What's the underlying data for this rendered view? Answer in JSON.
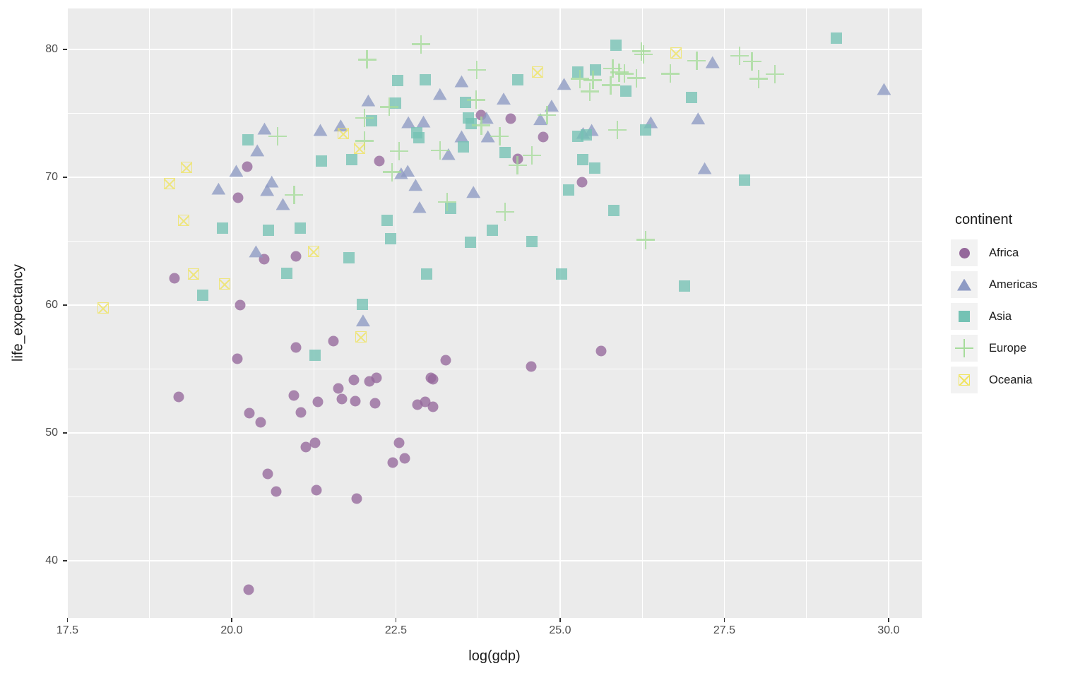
{
  "figure": {
    "x_axis_title": "log(gdp)",
    "y_axis_title": "life_expectancy",
    "colors": {
      "background": "#FFFFFF",
      "panel": "#EBEBEB",
      "grid": "#FFFFFF",
      "tick_text": "#4D4D4D",
      "title_text": "#1A1A1A",
      "legend_key_bg": "#F2F2F2"
    }
  },
  "axes": {
    "x": {
      "tick_values": [
        17.5,
        20.0,
        22.5,
        25.0,
        27.5,
        30.0
      ],
      "tick_labels": [
        "17.5",
        "20.0",
        "22.5",
        "25.0",
        "27.5",
        "30.0"
      ],
      "minor_values": [
        18.75,
        21.25,
        23.75,
        26.25,
        28.75
      ],
      "range": [
        17.495,
        30.505
      ]
    },
    "y": {
      "tick_values": [
        40,
        50,
        60,
        70,
        80
      ],
      "tick_labels": [
        "40",
        "50",
        "60",
        "70",
        "80"
      ],
      "minor_values": [
        45,
        55,
        65,
        75
      ],
      "range": [
        35.3,
        83.2
      ]
    }
  },
  "legend": {
    "title": "continent"
  },
  "chart_data": {
    "type": "scatter",
    "title": "",
    "xlabel": "log(gdp)",
    "ylabel": "life_expectancy",
    "xlim": [
      17.495,
      30.505
    ],
    "ylim": [
      35.3,
      83.2
    ],
    "grid": true,
    "legend_position": "right",
    "series": [
      {
        "name": "Africa",
        "shape": "circle",
        "color": "#95689B",
        "points": [
          [
            20.24,
            70.8
          ],
          [
            20.1,
            68.4
          ],
          [
            23.8,
            74.85
          ],
          [
            24.25,
            74.6
          ],
          [
            24.74,
            73.15
          ],
          [
            24.35,
            71.45
          ],
          [
            22.25,
            71.25
          ],
          [
            25.33,
            69.6
          ],
          [
            20.5,
            63.6
          ],
          [
            20.98,
            63.8
          ],
          [
            19.13,
            62.1
          ],
          [
            20.13,
            60.0
          ],
          [
            21.55,
            57.2
          ],
          [
            20.98,
            56.7
          ],
          [
            20.09,
            55.8
          ],
          [
            19.19,
            52.8
          ],
          [
            21.86,
            54.15
          ],
          [
            21.62,
            53.5
          ],
          [
            20.95,
            52.95
          ],
          [
            21.31,
            52.4
          ],
          [
            21.68,
            52.65
          ],
          [
            21.88,
            52.5
          ],
          [
            20.27,
            51.55
          ],
          [
            20.44,
            50.8
          ],
          [
            21.05,
            51.6
          ],
          [
            25.62,
            56.4
          ],
          [
            23.26,
            55.7
          ],
          [
            24.56,
            55.2
          ],
          [
            22.1,
            54.05
          ],
          [
            22.2,
            54.3
          ],
          [
            23.03,
            54.3
          ],
          [
            23.06,
            54.2
          ],
          [
            22.18,
            52.3
          ],
          [
            22.83,
            52.2
          ],
          [
            22.95,
            52.4
          ],
          [
            23.07,
            52.05
          ],
          [
            21.13,
            48.9
          ],
          [
            21.27,
            49.2
          ],
          [
            20.55,
            46.8
          ],
          [
            20.68,
            45.4
          ],
          [
            21.29,
            45.5
          ],
          [
            21.9,
            44.85
          ],
          [
            20.26,
            37.75
          ],
          [
            22.55,
            49.2
          ],
          [
            22.45,
            47.7
          ],
          [
            22.64,
            48.0
          ]
        ]
      },
      {
        "name": "Americas",
        "shape": "triangle",
        "color": "#8E9BC4",
        "points": [
          [
            20.5,
            73.8
          ],
          [
            20.39,
            72.1
          ],
          [
            20.07,
            70.5
          ],
          [
            20.61,
            69.65
          ],
          [
            20.54,
            69.0
          ],
          [
            19.8,
            69.1
          ],
          [
            20.78,
            67.9
          ],
          [
            21.35,
            73.7
          ],
          [
            21.66,
            74.05
          ],
          [
            23.5,
            77.5
          ],
          [
            25.06,
            77.3
          ],
          [
            23.17,
            76.5
          ],
          [
            22.08,
            76.0
          ],
          [
            24.14,
            76.15
          ],
          [
            24.87,
            75.6
          ],
          [
            23.88,
            74.65
          ],
          [
            24.7,
            74.55
          ],
          [
            22.69,
            74.3
          ],
          [
            22.92,
            74.35
          ],
          [
            23.5,
            73.2
          ],
          [
            23.9,
            73.2
          ],
          [
            25.35,
            73.45
          ],
          [
            25.48,
            73.7
          ],
          [
            26.38,
            74.3
          ],
          [
            23.3,
            71.8
          ],
          [
            22.58,
            70.3
          ],
          [
            22.68,
            70.5
          ],
          [
            22.8,
            69.4
          ],
          [
            23.68,
            68.85
          ],
          [
            22.86,
            67.65
          ],
          [
            27.32,
            79.0
          ],
          [
            29.93,
            76.9
          ],
          [
            27.1,
            74.6
          ],
          [
            27.2,
            70.7
          ],
          [
            20.37,
            64.2
          ],
          [
            22.0,
            58.8
          ]
        ]
      },
      {
        "name": "Asia",
        "shape": "square",
        "color": "#74C2B4",
        "points": [
          [
            20.25,
            72.9
          ],
          [
            21.37,
            71.25
          ],
          [
            21.83,
            71.4
          ],
          [
            25.85,
            80.3
          ],
          [
            22.53,
            77.55
          ],
          [
            22.95,
            77.6
          ],
          [
            24.35,
            77.6
          ],
          [
            25.27,
            78.25
          ],
          [
            25.54,
            78.4
          ],
          [
            26.0,
            76.75
          ],
          [
            22.5,
            75.8
          ],
          [
            23.56,
            75.85
          ],
          [
            22.13,
            74.4
          ],
          [
            23.6,
            74.65
          ],
          [
            23.65,
            74.2
          ],
          [
            22.82,
            73.45
          ],
          [
            22.85,
            73.1
          ],
          [
            25.27,
            73.2
          ],
          [
            25.4,
            73.3
          ],
          [
            26.3,
            73.7
          ],
          [
            23.53,
            72.35
          ],
          [
            24.16,
            71.95
          ],
          [
            25.34,
            71.35
          ],
          [
            25.53,
            70.7
          ],
          [
            25.13,
            69.0
          ],
          [
            23.33,
            67.55
          ],
          [
            25.82,
            67.4
          ],
          [
            22.37,
            66.6
          ],
          [
            29.2,
            80.9
          ],
          [
            27.0,
            76.25
          ],
          [
            27.81,
            69.8
          ],
          [
            19.86,
            66.0
          ],
          [
            20.56,
            65.85
          ],
          [
            21.04,
            66.0
          ],
          [
            21.78,
            63.7
          ],
          [
            20.84,
            62.5
          ],
          [
            19.56,
            60.75
          ],
          [
            21.99,
            60.05
          ],
          [
            21.27,
            56.1
          ],
          [
            22.42,
            65.2
          ],
          [
            23.97,
            65.85
          ],
          [
            23.63,
            64.9
          ],
          [
            24.57,
            64.95
          ],
          [
            22.97,
            62.45
          ],
          [
            25.02,
            62.4
          ],
          [
            26.89,
            61.5
          ]
        ]
      },
      {
        "name": "Europe",
        "shape": "plus",
        "color": "#A6DC9B",
        "points": [
          [
            20.7,
            73.2
          ],
          [
            20.95,
            68.6
          ],
          [
            22.88,
            80.4
          ],
          [
            22.06,
            79.2
          ],
          [
            26.24,
            79.85
          ],
          [
            26.27,
            79.6
          ],
          [
            23.73,
            78.4
          ],
          [
            25.3,
            77.7
          ],
          [
            25.5,
            77.6
          ],
          [
            25.8,
            78.5
          ],
          [
            25.9,
            78.2
          ],
          [
            25.98,
            78.1
          ],
          [
            26.16,
            77.75
          ],
          [
            25.45,
            76.7
          ],
          [
            25.77,
            77.2
          ],
          [
            22.4,
            75.5
          ],
          [
            23.72,
            76.05
          ],
          [
            24.8,
            74.85
          ],
          [
            25.87,
            73.7
          ],
          [
            23.8,
            74.05
          ],
          [
            24.08,
            73.2
          ],
          [
            22.55,
            72.05
          ],
          [
            23.17,
            72.1
          ],
          [
            24.35,
            70.95
          ],
          [
            24.57,
            71.7
          ],
          [
            22.44,
            70.4
          ],
          [
            23.28,
            68.05
          ],
          [
            24.16,
            67.3
          ],
          [
            26.68,
            78.1
          ],
          [
            27.08,
            79.1
          ],
          [
            27.73,
            79.5
          ],
          [
            27.92,
            79.05
          ],
          [
            28.02,
            77.7
          ],
          [
            28.27,
            78.05
          ],
          [
            26.3,
            65.1
          ],
          [
            22.02,
            74.65
          ],
          [
            22.02,
            72.85
          ]
        ]
      },
      {
        "name": "Oceania",
        "shape": "crosssquare",
        "color": "#F0E45F",
        "points": [
          [
            19.31,
            70.75
          ],
          [
            19.05,
            69.5
          ],
          [
            21.7,
            73.4
          ],
          [
            21.95,
            72.25
          ],
          [
            24.66,
            78.25
          ],
          [
            26.76,
            79.7
          ],
          [
            19.27,
            66.6
          ],
          [
            19.42,
            62.45
          ],
          [
            19.89,
            61.65
          ],
          [
            18.04,
            59.8
          ],
          [
            21.25,
            64.2
          ],
          [
            21.97,
            57.5
          ]
        ]
      }
    ]
  }
}
